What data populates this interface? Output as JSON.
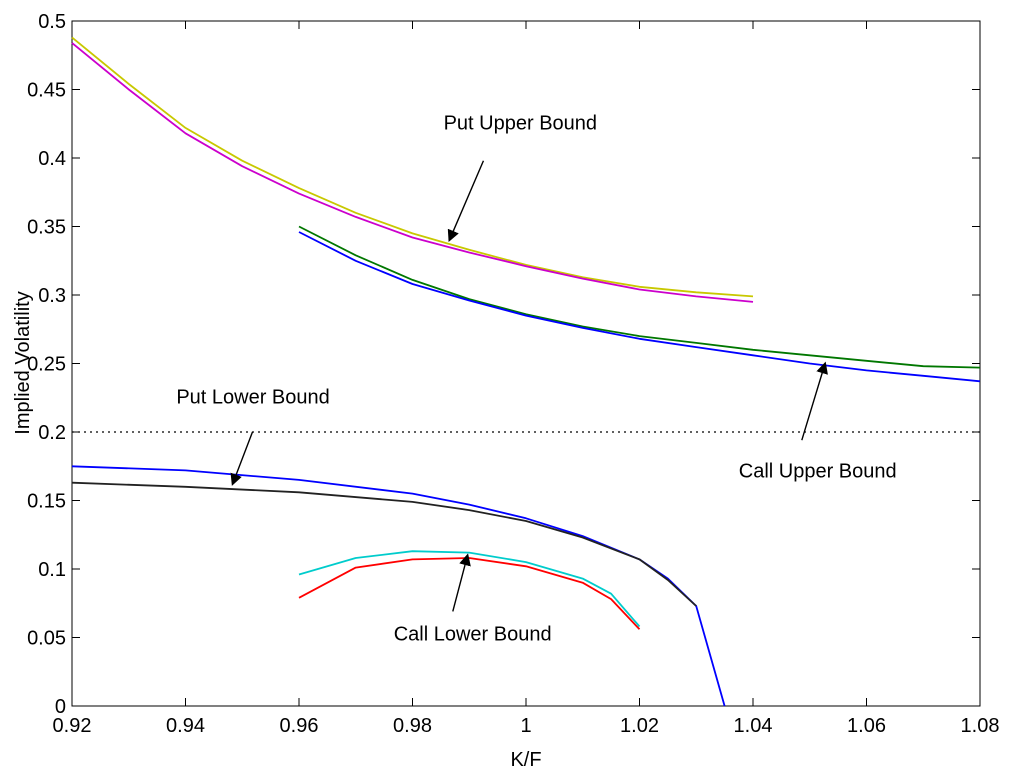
{
  "chart_data": {
    "type": "line",
    "title": "",
    "xlabel": "K/F",
    "ylabel": "Implied Volatility",
    "xlim": [
      0.92,
      1.08
    ],
    "ylim": [
      0,
      0.5
    ],
    "grid": false,
    "x_ticks": [
      0.92,
      0.94,
      0.96,
      0.98,
      1.0,
      1.02,
      1.04,
      1.06,
      1.08
    ],
    "x_tick_labels": [
      "0.92",
      "0.94",
      "0.96",
      "0.98",
      "1",
      "1.02",
      "1.04",
      "1.06",
      "1.08"
    ],
    "y_ticks": [
      0,
      0.05,
      0.1,
      0.15,
      0.2,
      0.25,
      0.3,
      0.35,
      0.4,
      0.45,
      0.5
    ],
    "y_tick_labels": [
      "0",
      "0.05",
      "0.1",
      "0.15",
      "0.2",
      "0.25",
      "0.3",
      "0.35",
      "0.4",
      "0.45",
      "0.5"
    ],
    "series": [
      {
        "color": "#c8c800",
        "x": [
          0.92,
          0.93,
          0.94,
          0.95,
          0.96,
          0.97,
          0.98,
          0.99,
          1.0,
          1.01,
          1.02,
          1.03,
          1.04
        ],
        "y": [
          0.488,
          0.454,
          0.422,
          0.398,
          0.378,
          0.36,
          0.345,
          0.333,
          0.322,
          0.313,
          0.306,
          0.302,
          0.299
        ]
      },
      {
        "color": "#cc00cc",
        "x": [
          0.92,
          0.93,
          0.94,
          0.95,
          0.96,
          0.97,
          0.98,
          0.99,
          1.0,
          1.01,
          1.02,
          1.03,
          1.04
        ],
        "y": [
          0.484,
          0.45,
          0.418,
          0.394,
          0.374,
          0.357,
          0.342,
          0.331,
          0.321,
          0.312,
          0.304,
          0.299,
          0.295
        ]
      },
      {
        "color": "#007700",
        "x": [
          0.96,
          0.97,
          0.98,
          0.99,
          1.0,
          1.01,
          1.02,
          1.03,
          1.04,
          1.05,
          1.06,
          1.07,
          1.08
        ],
        "y": [
          0.35,
          0.329,
          0.311,
          0.297,
          0.286,
          0.277,
          0.27,
          0.265,
          0.26,
          0.256,
          0.252,
          0.248,
          0.247
        ]
      },
      {
        "color": "#0000ff",
        "x": [
          0.96,
          0.97,
          0.98,
          0.99,
          1.0,
          1.01,
          1.02,
          1.03,
          1.04,
          1.05,
          1.06,
          1.07,
          1.08
        ],
        "y": [
          0.346,
          0.325,
          0.308,
          0.296,
          0.285,
          0.276,
          0.268,
          0.262,
          0.256,
          0.25,
          0.245,
          0.241,
          0.237
        ]
      },
      {
        "color": "#000000",
        "dashed": true,
        "x": [
          0.92,
          1.08
        ],
        "y": [
          0.2,
          0.2
        ]
      },
      {
        "color": "#0000ff",
        "x": [
          0.92,
          0.94,
          0.96,
          0.98,
          0.99,
          1.0,
          1.01,
          1.02,
          1.025,
          1.03,
          1.035
        ],
        "y": [
          0.175,
          0.172,
          0.165,
          0.155,
          0.147,
          0.137,
          0.124,
          0.107,
          0.093,
          0.073,
          0.0
        ]
      },
      {
        "color": "#222222",
        "x": [
          0.92,
          0.94,
          0.96,
          0.98,
          0.99,
          1.0,
          1.01,
          1.02,
          1.025,
          1.03
        ],
        "y": [
          0.163,
          0.16,
          0.156,
          0.149,
          0.143,
          0.135,
          0.123,
          0.107,
          0.092,
          0.073
        ]
      },
      {
        "color": "#00cccc",
        "x": [
          0.96,
          0.97,
          0.98,
          0.99,
          1.0,
          1.01,
          1.015,
          1.02
        ],
        "y": [
          0.096,
          0.108,
          0.113,
          0.112,
          0.105,
          0.093,
          0.082,
          0.058
        ]
      },
      {
        "color": "#ff0000",
        "x": [
          0.96,
          0.97,
          0.98,
          0.99,
          1.0,
          1.01,
          1.015,
          1.02
        ],
        "y": [
          0.079,
          0.101,
          0.107,
          0.108,
          0.102,
          0.09,
          0.078,
          0.056
        ]
      }
    ],
    "annotations": [
      {
        "text": "Put Upper Bound",
        "text_x": 0.999,
        "text_y": 0.426,
        "arrow_from": [
          0.9925,
          0.398
        ],
        "arrow_to": [
          0.9865,
          0.34
        ]
      },
      {
        "text": "Call Upper Bound",
        "text_x": 1.0514,
        "text_y": 0.172,
        "arrow_from": [
          1.0486,
          0.194
        ],
        "arrow_to": [
          1.0527,
          0.25
        ]
      },
      {
        "text": "Put Lower Bound",
        "text_x": 0.9519,
        "text_y": 0.226,
        "arrow_from": [
          0.9518,
          0.2
        ],
        "arrow_to": [
          0.9483,
          0.162
        ]
      },
      {
        "text": "Call Lower Bound",
        "text_x": 0.9906,
        "text_y": 0.053,
        "arrow_from": [
          0.9871,
          0.069
        ],
        "arrow_to": [
          0.9897,
          0.11
        ]
      }
    ]
  }
}
